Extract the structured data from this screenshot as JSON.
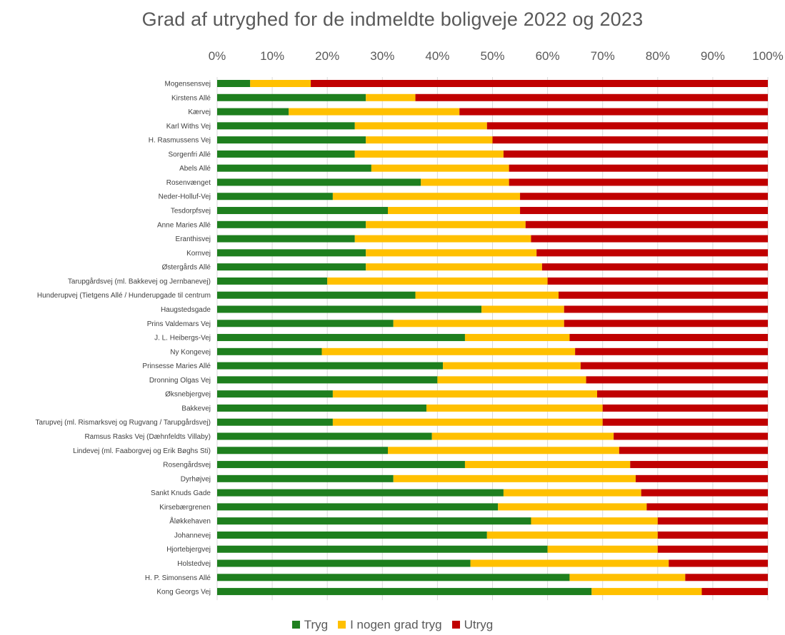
{
  "chart_data": {
    "type": "bar",
    "orientation": "horizontal",
    "stacked": "percent",
    "title": "Grad af utryghed for de indmeldte boligveje 2022 og 2023",
    "xlim": [
      0,
      100
    ],
    "x_ticks": [
      "0%",
      "10%",
      "20%",
      "30%",
      "40%",
      "50%",
      "60%",
      "70%",
      "80%",
      "90%",
      "100%"
    ],
    "grid": true,
    "legend_position": "bottom",
    "categories": [
      "Mogensensvej",
      "Kirstens Allé",
      "Kærvej",
      "Karl Withs Vej",
      "H. Rasmussens Vej",
      "Sorgenfri Allé",
      "Abels Allé",
      "Rosenvænget",
      "Neder-Holluf-Vej",
      "Tesdorpfsvej",
      "Anne Maries Allé",
      "Eranthisvej",
      "Kornvej",
      "Østergårds Allé",
      "Tarupgårdsvej (ml. Bakkevej og Jernbanevej)",
      "Hunderupvej (Tietgens Allé / Hunderupgade til centrum",
      "Haugstedsgade",
      "Prins Valdemars Vej",
      "J. L. Heibergs-Vej",
      "Ny Kongevej",
      "Prinsesse Maries Allé",
      "Dronning Olgas Vej",
      "Øksnebjergvej",
      "Bakkevej",
      "Tarupvej (ml. Rismarksvej og Rugvang / Tarupgårdsvej)",
      "Ramsus Rasks Vej (Dæhnfeldts Villaby)",
      "Lindevej (ml. Faaborgvej og Erik Bøghs Sti)",
      "Rosengårdsvej",
      "Dyrhøjvej",
      "Sankt Knuds Gade",
      "Kirsebærgrenen",
      "Åløkkehaven",
      "Johannevej",
      "Hjortebjergvej",
      "Holstedvej",
      "H. P. Simonsens Allé",
      "Kong Georgs Vej"
    ],
    "series": [
      {
        "name": "Tryg",
        "color": "#1e7f1e",
        "values": [
          6,
          27,
          13,
          25,
          27,
          25,
          28,
          37,
          21,
          31,
          27,
          25,
          27,
          27,
          20,
          36,
          48,
          32,
          45,
          19,
          41,
          40,
          21,
          38,
          21,
          39,
          31,
          45,
          32,
          52,
          51,
          57,
          49,
          60,
          46,
          64,
          68
        ]
      },
      {
        "name": "I nogen grad tryg",
        "color": "#ffc000",
        "values": [
          11,
          9,
          31,
          24,
          23,
          27,
          25,
          16,
          34,
          24,
          29,
          32,
          31,
          32,
          40,
          26,
          15,
          31,
          19,
          46,
          25,
          27,
          48,
          32,
          49,
          33,
          42,
          30,
          44,
          25,
          27,
          23,
          31,
          20,
          36,
          21,
          20
        ]
      },
      {
        "name": "Utryg",
        "color": "#c00000",
        "values": [
          83,
          64,
          56,
          51,
          50,
          48,
          47,
          47,
          45,
          45,
          44,
          43,
          42,
          41,
          40,
          38,
          37,
          37,
          36,
          35,
          34,
          33,
          31,
          30,
          30,
          28,
          27,
          25,
          24,
          23,
          22,
          20,
          20,
          20,
          18,
          15,
          12
        ]
      }
    ]
  }
}
